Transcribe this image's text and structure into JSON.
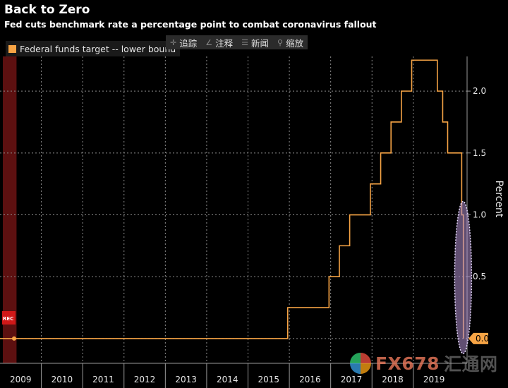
{
  "chart_data": {
    "type": "line",
    "title": "Back to Zero",
    "subtitle": "Fed cuts benchmark rate a percentage point to combat coronavirus fallout",
    "xlabel": "",
    "ylabel": "Percent",
    "x_tick_labels": [
      "2009",
      "2010",
      "2011",
      "2012",
      "2013",
      "2014",
      "2015",
      "2016",
      "2017",
      "2018",
      "2019"
    ],
    "y_ticks": [
      0.0,
      0.5,
      1.0,
      1.5,
      2.0
    ],
    "y_tick_labels": [
      "0.5",
      "1.0",
      "1.5",
      "2.0"
    ],
    "ylim": [
      -0.2,
      2.28
    ],
    "xlim": [
      2009.0,
      2020.3
    ],
    "grid": true,
    "y_axis_position": "right",
    "legend_position": "top-left",
    "recession_band": {
      "label": "REC",
      "x_start": 2008.0,
      "x_end": 2009.4,
      "color": "#5c1010"
    },
    "current_value_label": "0.0",
    "series": [
      {
        "name": "Federal funds target -- lower bound",
        "color": "#f7a445",
        "step": true,
        "x": [
          2009.0,
          2015.96,
          2016.96,
          2017.21,
          2017.46,
          2017.96,
          2018.21,
          2018.46,
          2018.71,
          2018.96,
          2019.58,
          2019.71,
          2019.83,
          2020.17,
          2020.21
        ],
        "y": [
          0.0,
          0.25,
          0.5,
          0.75,
          1.0,
          1.25,
          1.5,
          1.75,
          2.0,
          2.25,
          2.0,
          1.75,
          1.5,
          1.0,
          0.0
        ]
      }
    ],
    "annotations": [
      {
        "type": "ellipse",
        "x_center": 2020.17,
        "y_center": 0.55,
        "color": "#b090d0"
      }
    ]
  },
  "toolbar": {
    "items": [
      {
        "label": "追踪",
        "icon": "pin-icon"
      },
      {
        "label": "注释",
        "icon": "pencil-icon"
      },
      {
        "label": "新闻",
        "icon": "news-icon"
      },
      {
        "label": "缩放",
        "icon": "zoom-icon"
      }
    ]
  },
  "watermark": {
    "text_a": "FX678",
    "text_b": "汇通网"
  }
}
